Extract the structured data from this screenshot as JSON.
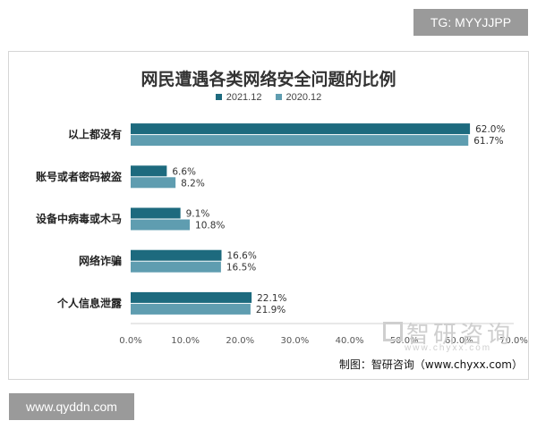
{
  "overlay": {
    "top_tag": "TG: MYYJJPP",
    "bottom_tag": "www.qyddn.com",
    "watermark": "智研咨询",
    "watermark_url": "www.chyxx.com",
    "source": "制图：智研咨询（www.chyxx.com）"
  },
  "chart_data": {
    "type": "bar",
    "orientation": "horizontal",
    "title": "网民遭遇各类网络安全问题的比例",
    "categories": [
      "以上都没有",
      "账号或者密码被盗",
      "设备中病毒或木马",
      "网络诈骗",
      "个人信息泄露"
    ],
    "series": [
      {
        "name": "2021.12",
        "color": "#1d6a7e",
        "values": [
          62.0,
          6.6,
          9.1,
          16.6,
          22.1
        ],
        "labels": [
          "62.0%",
          "6.6%",
          "9.1%",
          "16.6%",
          "22.1%"
        ]
      },
      {
        "name": "2020.12",
        "color": "#5f9db0",
        "values": [
          61.7,
          8.2,
          10.8,
          16.5,
          21.9
        ],
        "labels": [
          "61.7%",
          "8.2%",
          "10.8%",
          "16.5%",
          "21.9%"
        ]
      }
    ],
    "x_ticks": [
      "0.0%",
      "10.0%",
      "20.0%",
      "30.0%",
      "40.0%",
      "50.0%",
      "60.0%",
      "70.0%"
    ],
    "xlim": [
      0,
      70
    ],
    "legend_position": "top",
    "grid": false
  }
}
